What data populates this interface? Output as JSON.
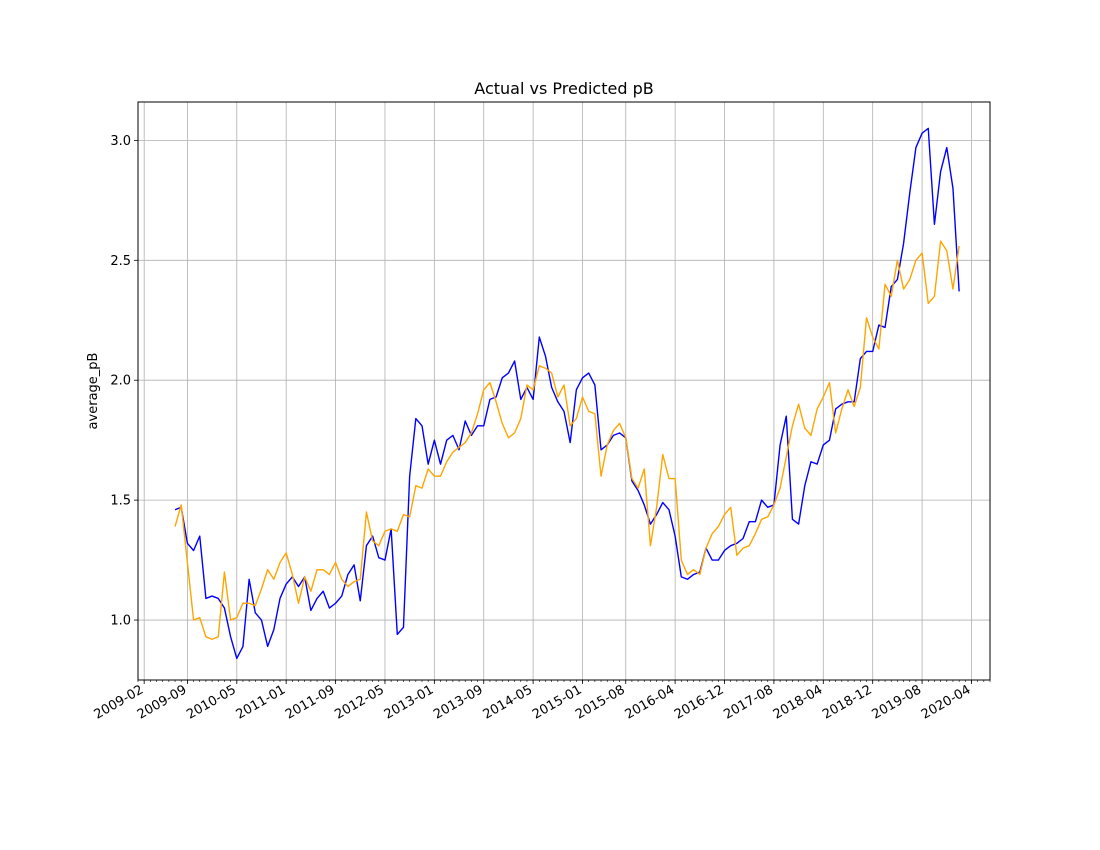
{
  "chart_data": {
    "type": "line",
    "title": "Actual vs Predicted pB",
    "xlabel": "",
    "ylabel": "average_pB",
    "xlim": [
      "2009-01-01",
      "2020-07-01"
    ],
    "ylim": [
      0.75,
      3.16
    ],
    "grid": true,
    "x_ticks": [
      "2009-02",
      "2009-09",
      "2010-05",
      "2011-01",
      "2011-09",
      "2012-05",
      "2013-01",
      "2013-09",
      "2014-05",
      "2015-01",
      "2015-08",
      "2016-04",
      "2016-12",
      "2017-08",
      "2018-04",
      "2018-12",
      "2019-08",
      "2020-04"
    ],
    "y_ticks": [
      1.0,
      1.5,
      2.0,
      2.5,
      3.0
    ],
    "y_tick_labels": [
      "1.0",
      "1.5",
      "2.0",
      "2.5",
      "3.0"
    ],
    "start": "2009-07",
    "series": [
      {
        "color": "#0000ff",
        "values": [
          1.46,
          1.47,
          1.32,
          1.29,
          1.35,
          1.09,
          1.1,
          1.09,
          1.05,
          0.93,
          0.84,
          0.89,
          1.17,
          1.03,
          1.0,
          0.89,
          0.96,
          1.09,
          1.15,
          1.18,
          1.14,
          1.18,
          1.04,
          1.09,
          1.12,
          1.05,
          1.07,
          1.1,
          1.19,
          1.23,
          1.08,
          1.31,
          1.35,
          1.26,
          1.25,
          1.38,
          0.94,
          0.97,
          1.6,
          1.84,
          1.81,
          1.65,
          1.75,
          1.65,
          1.75,
          1.77,
          1.71,
          1.83,
          1.77,
          1.81,
          1.81,
          1.92,
          1.93,
          2.01,
          2.03,
          2.08,
          1.92,
          1.97,
          1.92,
          2.18,
          2.1,
          1.97,
          1.91,
          1.87,
          1.74,
          1.96,
          2.01,
          2.03,
          1.98,
          1.71,
          1.73,
          1.77,
          1.78,
          1.76,
          1.58,
          1.54,
          1.48,
          1.4,
          1.44,
          1.49,
          1.46,
          1.35,
          1.18,
          1.17,
          1.19,
          1.2,
          1.3,
          1.25,
          1.25,
          1.29,
          1.31,
          1.32,
          1.34,
          1.41,
          1.41,
          1.5,
          1.47,
          1.48,
          1.73,
          1.85,
          1.42,
          1.4,
          1.56,
          1.66,
          1.65,
          1.73,
          1.75,
          1.88,
          1.9,
          1.91,
          1.91,
          2.09,
          2.12,
          2.12,
          2.23,
          2.22,
          2.39,
          2.42,
          2.57,
          2.78,
          2.97,
          3.03,
          3.05,
          2.65,
          2.87,
          2.97,
          2.8,
          2.37
        ]
      },
      {
        "color": "#ffa500",
        "values": [
          1.39,
          1.48,
          1.24,
          1.0,
          1.01,
          0.93,
          0.92,
          0.93,
          1.2,
          1.0,
          1.01,
          1.07,
          1.07,
          1.06,
          1.13,
          1.21,
          1.17,
          1.24,
          1.28,
          1.19,
          1.07,
          1.18,
          1.12,
          1.21,
          1.21,
          1.19,
          1.24,
          1.17,
          1.14,
          1.16,
          1.17,
          1.45,
          1.33,
          1.31,
          1.37,
          1.38,
          1.37,
          1.44,
          1.43,
          1.56,
          1.55,
          1.63,
          1.6,
          1.6,
          1.66,
          1.7,
          1.72,
          1.74,
          1.78,
          1.86,
          1.96,
          1.99,
          1.91,
          1.82,
          1.76,
          1.78,
          1.84,
          1.98,
          1.96,
          2.06,
          2.05,
          2.03,
          1.93,
          1.98,
          1.81,
          1.84,
          1.93,
          1.87,
          1.86,
          1.6,
          1.73,
          1.79,
          1.82,
          1.76,
          1.59,
          1.55,
          1.63,
          1.31,
          1.47,
          1.69,
          1.59,
          1.59,
          1.25,
          1.19,
          1.21,
          1.19,
          1.3,
          1.36,
          1.39,
          1.44,
          1.47,
          1.27,
          1.3,
          1.31,
          1.36,
          1.42,
          1.43,
          1.48,
          1.55,
          1.68,
          1.81,
          1.9,
          1.8,
          1.77,
          1.88,
          1.93,
          1.99,
          1.78,
          1.88,
          1.96,
          1.89,
          1.97,
          2.26,
          2.18,
          2.13,
          2.4,
          2.35,
          2.5,
          2.38,
          2.42,
          2.5,
          2.53,
          2.32,
          2.35,
          2.58,
          2.54,
          2.38,
          2.56
        ]
      }
    ]
  }
}
